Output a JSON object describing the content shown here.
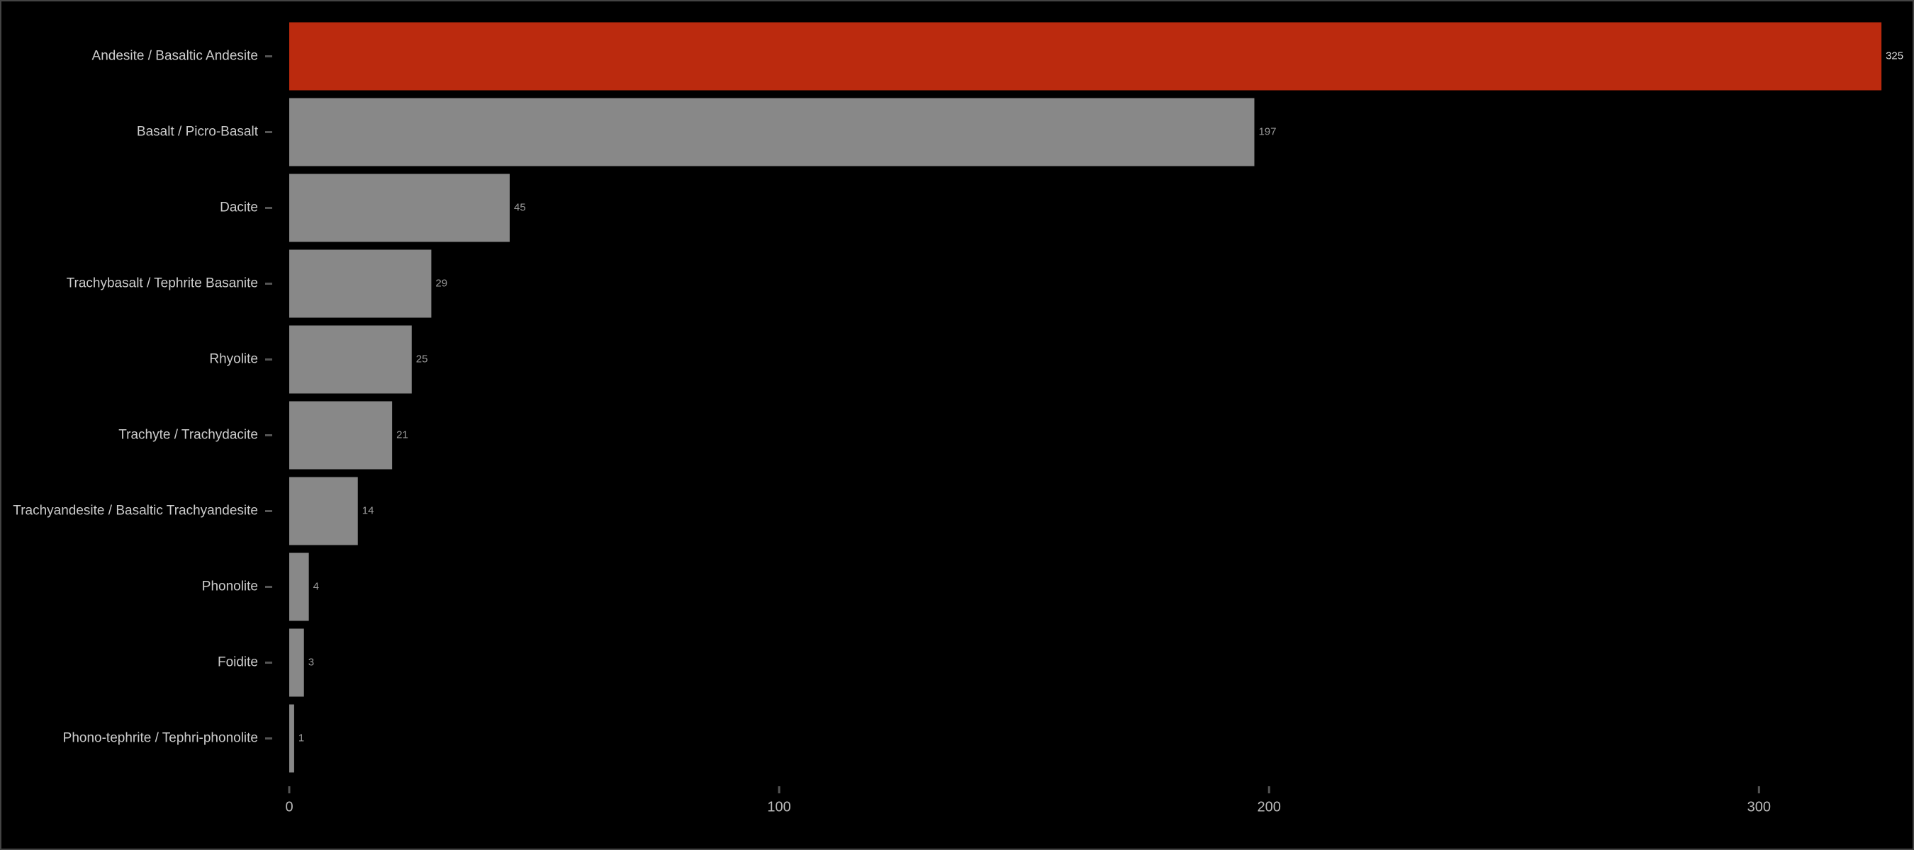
{
  "chart_data": {
    "type": "bar",
    "orientation": "horizontal",
    "categories": [
      "Andesite / Basaltic Andesite",
      "Basalt / Picro-Basalt",
      "Dacite",
      "Trachybasalt / Tephrite Basanite",
      "Rhyolite",
      "Trachyte / Trachydacite",
      "Trachyandesite / Basaltic Trachyandesite",
      "Phonolite",
      "Foidite",
      "Phono-tephrite /  Tephri-phonolite"
    ],
    "values": [
      325,
      197,
      45,
      29,
      25,
      21,
      14,
      4,
      3,
      1
    ],
    "colors": [
      "#bb2a0e",
      "#888888",
      "#888888",
      "#888888",
      "#888888",
      "#888888",
      "#888888",
      "#888888",
      "#888888",
      "#888888"
    ],
    "xlim": [
      0,
      326
    ],
    "xticks": [
      0,
      100,
      200,
      300
    ]
  }
}
